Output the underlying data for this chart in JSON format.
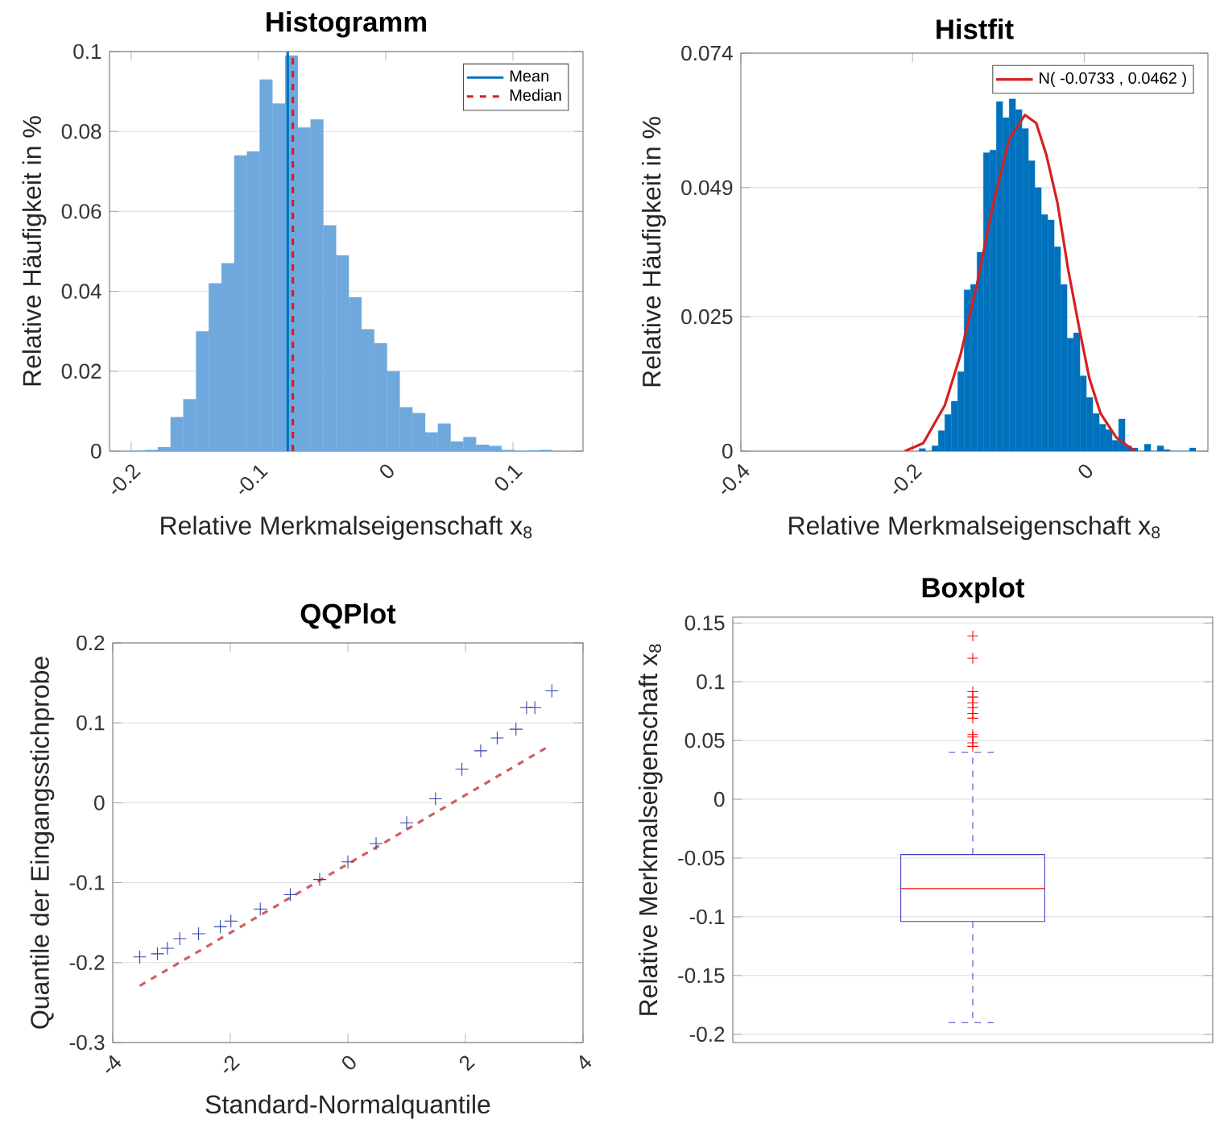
{
  "chart_data": [
    {
      "type": "histogram",
      "title": "Histogramm",
      "xlabel": "Relative Merkmalseigenschaft x$_{8}$",
      "ylabel": "Relative Häufigkeit in %",
      "bins": [
        -0.199,
        -0.189,
        -0.179,
        -0.169,
        -0.159,
        -0.149,
        -0.139,
        -0.129,
        -0.119,
        -0.109,
        -0.099,
        -0.089,
        -0.079,
        -0.069,
        -0.059,
        -0.049,
        -0.039,
        -0.029,
        -0.019,
        -0.009,
        0.001,
        0.011,
        0.021,
        0.031,
        0.041,
        0.051,
        0.061,
        0.071,
        0.081,
        0.091,
        0.101,
        0.111,
        0.121,
        0.131
      ],
      "values": [
        0.0001,
        0.0003,
        0.001,
        0.0085,
        0.013,
        0.03,
        0.042,
        0.047,
        0.074,
        0.075,
        0.093,
        0.087,
        0.099,
        0.081,
        0.083,
        0.0565,
        0.049,
        0.0385,
        0.0305,
        0.027,
        0.02,
        0.011,
        0.0095,
        0.0047,
        0.0069,
        0.0024,
        0.0035,
        0.0016,
        0.0013,
        0.0003,
        0,
        0.0002,
        0.0003
      ],
      "color": "#6fa8dc",
      "xlim": [
        -0.217,
        0.155
      ],
      "ylim": [
        0,
        0.1
      ],
      "xticks": [
        -0.2,
        -0.1,
        0,
        0.1
      ],
      "yticks": [
        0,
        0.02,
        0.04,
        0.06,
        0.08,
        0.1
      ],
      "grid": "y",
      "legend": "top right",
      "series": [
        {
          "type": "line",
          "name": "Mean",
          "color": "#0072bd",
          "line_style": "solid",
          "x": [
            -0.077,
            -0.077
          ],
          "values": [
            0,
            0.1
          ]
        },
        {
          "type": "line",
          "name": "Median",
          "color": "#d62020",
          "line_style": "dashed",
          "x": [
            -0.073,
            -0.073
          ],
          "values": [
            0,
            0.1
          ]
        }
      ]
    },
    {
      "type": "histogram",
      "title": "Histfit",
      "xlabel": "Relative Merkmalseigenschaft x$_{8}$",
      "ylabel": "Relative Häufigkeit in %",
      "bins": [
        -0.1925,
        -0.185,
        -0.1775,
        -0.17,
        -0.1625,
        -0.155,
        -0.1475,
        -0.14,
        -0.1325,
        -0.125,
        -0.1175,
        -0.11,
        -0.1025,
        -0.095,
        -0.0875,
        -0.08,
        -0.0725,
        -0.065,
        -0.0575,
        -0.05,
        -0.0425,
        -0.035,
        -0.0275,
        -0.02,
        -0.0125,
        -0.005,
        0.0025,
        0.01,
        0.0175,
        0.025,
        0.0325,
        0.04,
        0.0475,
        0.055,
        0.0625,
        0.07,
        0.0775,
        0.085,
        0.0925,
        0.1,
        0.1075,
        0.115,
        0.1225,
        0.13
      ],
      "values": [
        0.0005,
        0,
        0.001,
        0.0038,
        0.0068,
        0.0093,
        0.0148,
        0.03,
        0.031,
        0.037,
        0.0555,
        0.056,
        0.065,
        0.062,
        0.0655,
        0.0635,
        0.06,
        0.054,
        0.049,
        0.044,
        0.043,
        0.038,
        0.031,
        0.021,
        0.022,
        0.014,
        0.01,
        0.007,
        0.005,
        0.004,
        0.002,
        0.006,
        0.001,
        0.0006,
        0,
        0.0013,
        0,
        0.001,
        0.0003,
        0,
        0,
        0,
        0.0006
      ],
      "color": "#0072bd",
      "xlim": [
        -0.4,
        0.144
      ],
      "ylim": [
        0,
        0.074
      ],
      "xticks": [
        -0.4,
        -0.2,
        0
      ],
      "yticks": [
        0,
        0.025,
        0.049,
        0.074
      ],
      "grid": "y",
      "legend": "top right",
      "series": [
        {
          "type": "line",
          "name": "N( -0.0733 , 0.0462 )",
          "color": "#d62020",
          "line_style": "solid",
          "x": [
            -0.209,
            -0.1875,
            -0.1625,
            -0.144,
            -0.125,
            -0.106,
            -0.0875,
            -0.069,
            -0.056,
            -0.044,
            -0.031,
            -0.019,
            -0.006,
            0.006,
            0.019,
            0.0375,
            0.059
          ],
          "values": [
            0,
            0.0015,
            0.0085,
            0.018,
            0.031,
            0.046,
            0.058,
            0.0625,
            0.061,
            0.055,
            0.046,
            0.034,
            0.023,
            0.0135,
            0.007,
            0.0025,
            0
          ]
        }
      ]
    },
    {
      "type": "scatter",
      "title": "QQPlot",
      "xlabel": "Standard-Normalquantile",
      "ylabel": "Quantile der Eingangsstichprobe",
      "xlim": [
        -4,
        4
      ],
      "ylim": [
        -0.3,
        0.2
      ],
      "xticks": [
        -4,
        -2,
        0,
        2,
        4
      ],
      "yticks": [
        -0.3,
        -0.2,
        -0.1,
        0,
        0.1,
        0.2
      ],
      "grid": "y",
      "series": [
        {
          "type": "scatter",
          "color": "#3040b0",
          "marker": "cross",
          "x": [
            -3.54,
            -3.24,
            -3.07,
            -2.86,
            -2.54,
            -2.17,
            -1.99,
            -1.49,
            -0.98,
            -0.48,
            0,
            0.48,
            1.0,
            1.49,
            1.94,
            2.26,
            2.54,
            2.86,
            3.04,
            3.18,
            3.47
          ],
          "values": [
            -0.193,
            -0.189,
            -0.182,
            -0.17,
            -0.164,
            -0.155,
            -0.148,
            -0.133,
            -0.115,
            -0.096,
            -0.074,
            -0.051,
            -0.025,
            0.005,
            0.042,
            0.065,
            0.081,
            0.092,
            0.119,
            0.119,
            0.14
          ]
        },
        {
          "type": "line",
          "color": "#d06060",
          "line_style": "dashed",
          "x": [
            -3.54,
            3.45
          ],
          "values": [
            -0.229,
            0.072
          ]
        }
      ]
    },
    {
      "type": "box",
      "title": "Boxplot",
      "ylabel": "Relative Merkmalseigenschaft x$_{8}$",
      "categories": [
        null
      ],
      "color": "#4040c0",
      "ylim": [
        -0.207,
        0.155
      ],
      "yticks": [
        -0.2,
        -0.15,
        -0.1,
        -0.05,
        0,
        0.05,
        0.1,
        0.15
      ],
      "grid": "y",
      "boxes": [
        {
          "low": -0.19,
          "q1": -0.104,
          "median": -0.076,
          "q3": -0.047,
          "high": 0.04,
          "outliers": [
            0.139,
            0.12,
            0.0915,
            0.087,
            0.082,
            0.078,
            0.073,
            0.069,
            0.055,
            0.053,
            0.048,
            0.045
          ]
        }
      ]
    }
  ]
}
